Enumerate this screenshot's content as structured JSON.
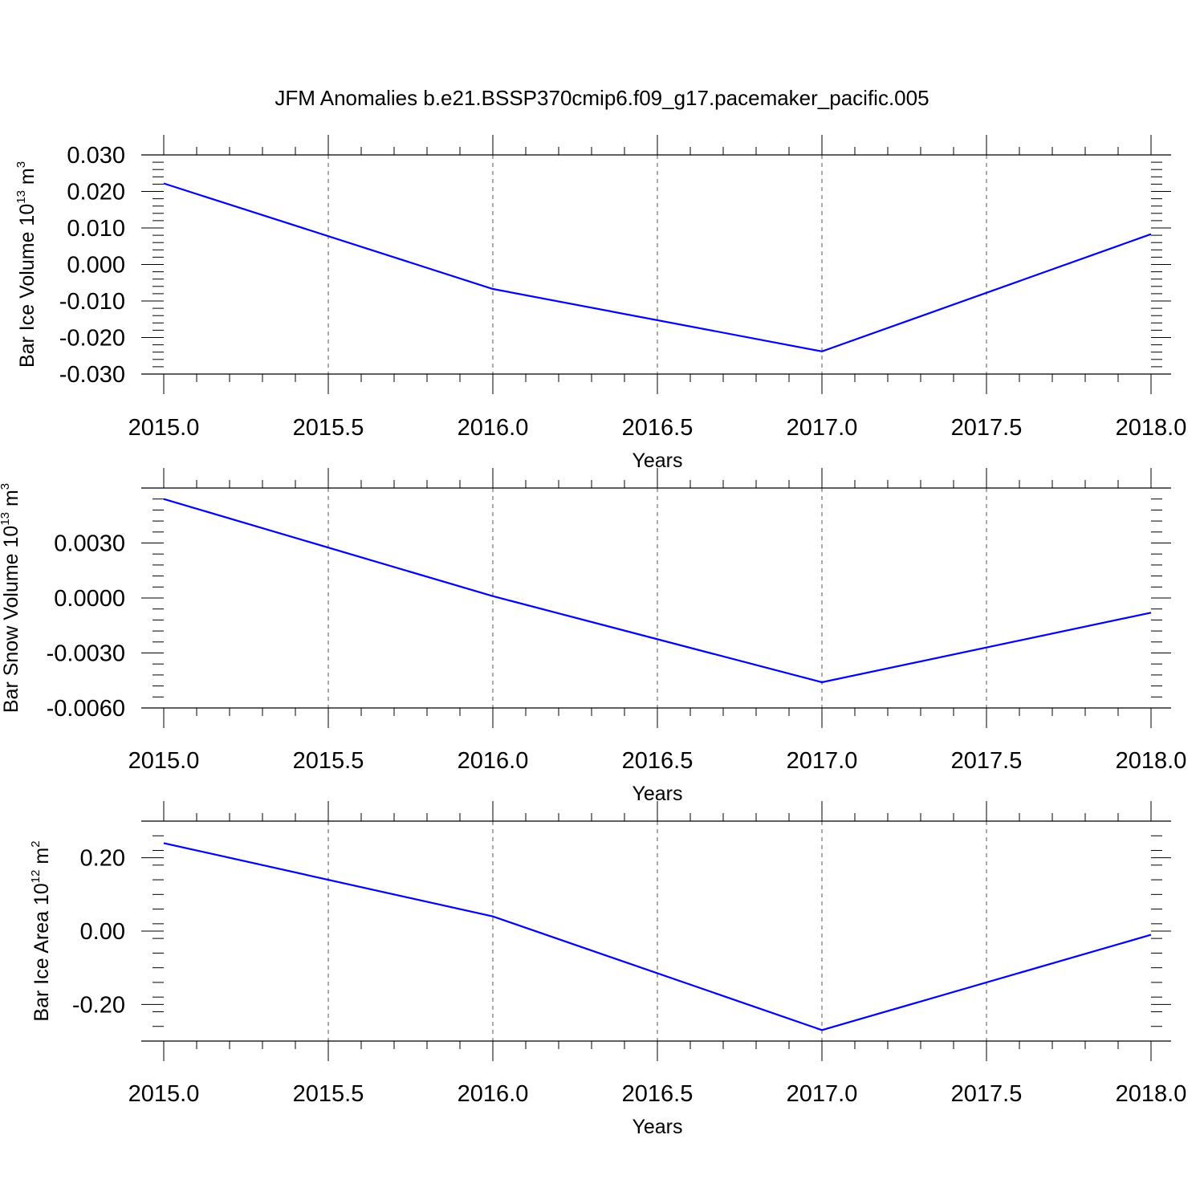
{
  "title": "JFM Anomalies b.e21.BSSP370cmip6.f09_g17.pacemaker_pacific.005",
  "colors": {
    "line": "#0000ff",
    "axis": "#000000",
    "grid": "#555555"
  },
  "chart_data": [
    {
      "type": "line",
      "xlabel": "Years",
      "ylabel": {
        "base": "Bar Ice Volume 10",
        "exp": "13",
        "unit": " m",
        "unit_exp": "3"
      },
      "xlim": [
        2015.0,
        2018.0
      ],
      "ylim": [
        -0.03,
        0.03
      ],
      "x_ticks": [
        "2015.0",
        "2015.5",
        "2016.0",
        "2016.5",
        "2017.0",
        "2017.5",
        "2018.0"
      ],
      "y_ticks": [
        {
          "value": 0.03,
          "label": "0.030"
        },
        {
          "value": 0.02,
          "label": "0.020"
        },
        {
          "value": 0.01,
          "label": "0.010"
        },
        {
          "value": 0.0,
          "label": "0.000"
        },
        {
          "value": -0.01,
          "label": "-0.010"
        },
        {
          "value": -0.02,
          "label": "-0.020"
        },
        {
          "value": -0.03,
          "label": "-0.030"
        }
      ],
      "x": [
        2015,
        2016,
        2017,
        2018
      ],
      "series": [
        {
          "values": [
            0.0222,
            -0.0067,
            -0.0238,
            0.0083
          ]
        }
      ]
    },
    {
      "type": "line",
      "xlabel": "Years",
      "ylabel": {
        "base": "Bar Snow Volume 10",
        "exp": "13",
        "unit": " m",
        "unit_exp": "3"
      },
      "xlim": [
        2015.0,
        2018.0
      ],
      "ylim": [
        -0.006,
        0.006
      ],
      "x_ticks": [
        "2015.0",
        "2015.5",
        "2016.0",
        "2016.5",
        "2017.0",
        "2017.5",
        "2018.0"
      ],
      "y_ticks": [
        {
          "value": 0.003,
          "label": "0.0030"
        },
        {
          "value": 0.0,
          "label": "0.0000"
        },
        {
          "value": -0.003,
          "label": "-0.0030"
        },
        {
          "value": -0.006,
          "label": "-0.0060"
        }
      ],
      "x": [
        2015,
        2016,
        2017,
        2018
      ],
      "series": [
        {
          "values": [
            0.0054,
            0.0001,
            -0.0046,
            -0.0008
          ]
        }
      ]
    },
    {
      "type": "line",
      "xlabel": "Years",
      "ylabel": {
        "base": "Bar Ice Area 10",
        "exp": "12",
        "unit": " m",
        "unit_exp": "2"
      },
      "xlim": [
        2015.0,
        2018.0
      ],
      "ylim": [
        -0.3,
        0.3
      ],
      "x_ticks": [
        "2015.0",
        "2015.5",
        "2016.0",
        "2016.5",
        "2017.0",
        "2017.5",
        "2018.0"
      ],
      "y_ticks": [
        {
          "value": 0.2,
          "label": "0.20"
        },
        {
          "value": 0.0,
          "label": "0.00"
        },
        {
          "value": -0.2,
          "label": "-0.20"
        }
      ],
      "x": [
        2015,
        2016,
        2017,
        2018
      ],
      "series": [
        {
          "values": [
            0.24,
            0.04,
            -0.27,
            -0.01
          ]
        }
      ]
    }
  ]
}
